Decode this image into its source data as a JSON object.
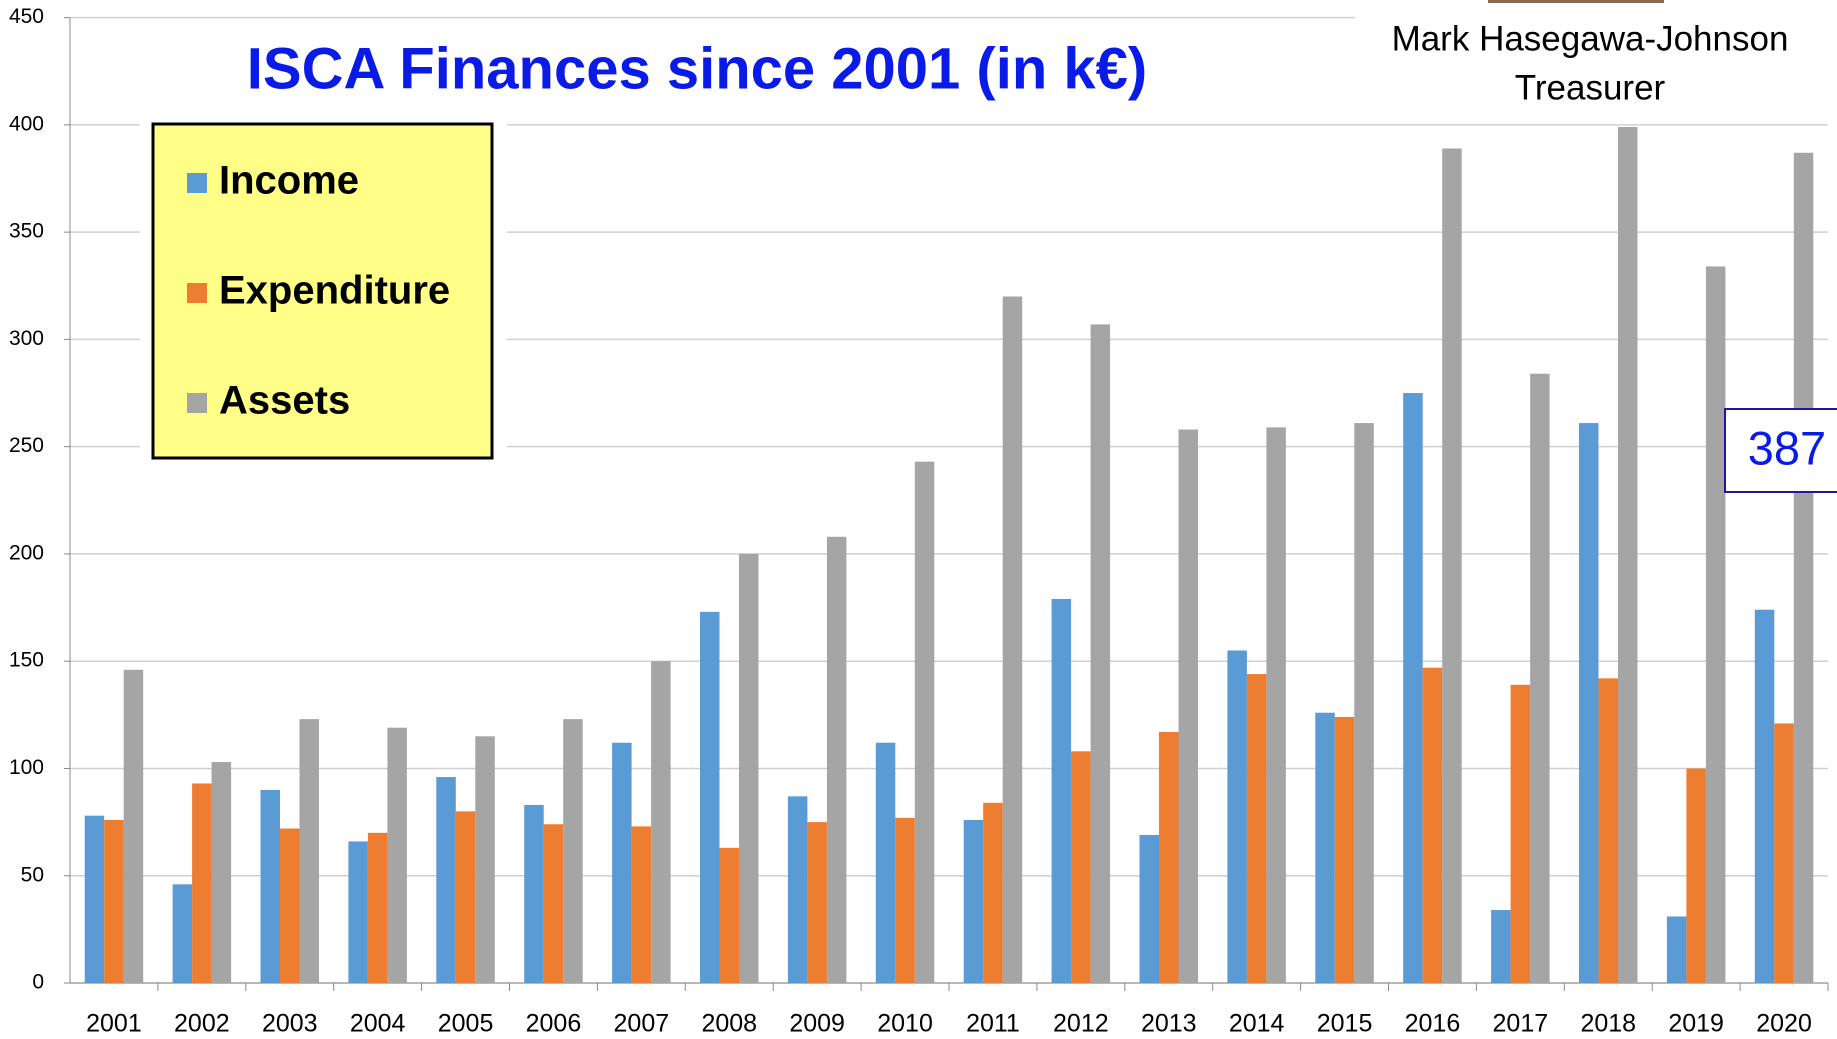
{
  "chart_data": {
    "type": "bar",
    "title": "ISCA  Finances since 2001 (in k€)",
    "presenter": "Mark Hasegawa-Johnson",
    "role": "Treasurer",
    "annotation": "387",
    "categories": [
      "2001",
      "2002",
      "2003",
      "2004",
      "2005",
      "2006",
      "2007",
      "2008",
      "2009",
      "2010",
      "2011",
      "2012",
      "2013",
      "2014",
      "2015",
      "2016",
      "2017",
      "2018",
      "2019",
      "2020"
    ],
    "series": [
      {
        "name": "Income",
        "color": "#5b9bd5",
        "values": [
          78,
          46,
          90,
          66,
          96,
          83,
          112,
          173,
          87,
          112,
          76,
          179,
          69,
          155,
          126,
          275,
          34,
          261,
          31,
          174
        ]
      },
      {
        "name": "Expenditure",
        "color": "#ed7d31",
        "values": [
          76,
          93,
          72,
          70,
          80,
          74,
          73,
          63,
          75,
          77,
          84,
          108,
          117,
          144,
          124,
          147,
          139,
          142,
          100,
          121
        ]
      },
      {
        "name": "Assets",
        "color": "#a5a5a5",
        "values": [
          146,
          103,
          123,
          119,
          115,
          123,
          150,
          200,
          208,
          243,
          320,
          307,
          258,
          259,
          261,
          389,
          284,
          399,
          334,
          387
        ]
      }
    ],
    "ylim": [
      0,
      450
    ],
    "yticks": [
      0,
      50,
      100,
      150,
      200,
      250,
      300,
      350,
      400,
      450
    ],
    "grid": true
  }
}
